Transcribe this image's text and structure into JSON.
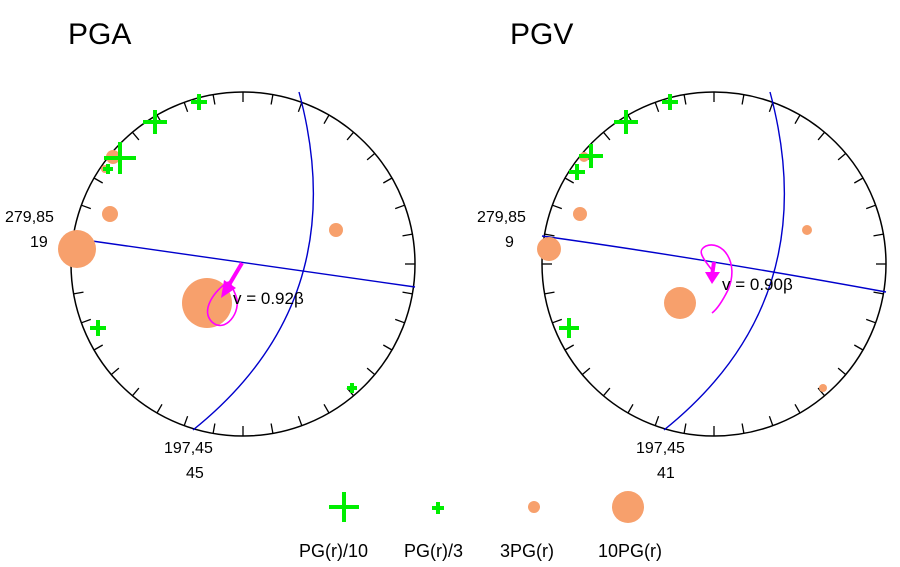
{
  "colors": {
    "circle": "#000000",
    "plane": "#0000cc",
    "cross": "#00ee00",
    "dot": "#f7a06c",
    "arrow": "#ff00ff"
  },
  "panels": [
    {
      "title": "PGA",
      "strike_dip_left": "279,85",
      "value_left": "19",
      "strike_dip_bottom": "197,45",
      "value_bottom": "45",
      "velocity_label": "v = 0.92β"
    },
    {
      "title": "PGV",
      "strike_dip_left": "279,85",
      "value_left": "9",
      "strike_dip_bottom": "197,45",
      "value_bottom": "41",
      "velocity_label": "v = 0.90β"
    }
  ],
  "legend": [
    {
      "symbol": "cross-large-icon",
      "label": "PG(r)/10"
    },
    {
      "symbol": "cross-small-icon",
      "label": "PG(r)/3"
    },
    {
      "symbol": "dot-small-icon",
      "label": "3PG(r)"
    },
    {
      "symbol": "dot-large-icon",
      "label": "10PG(r)"
    }
  ]
}
